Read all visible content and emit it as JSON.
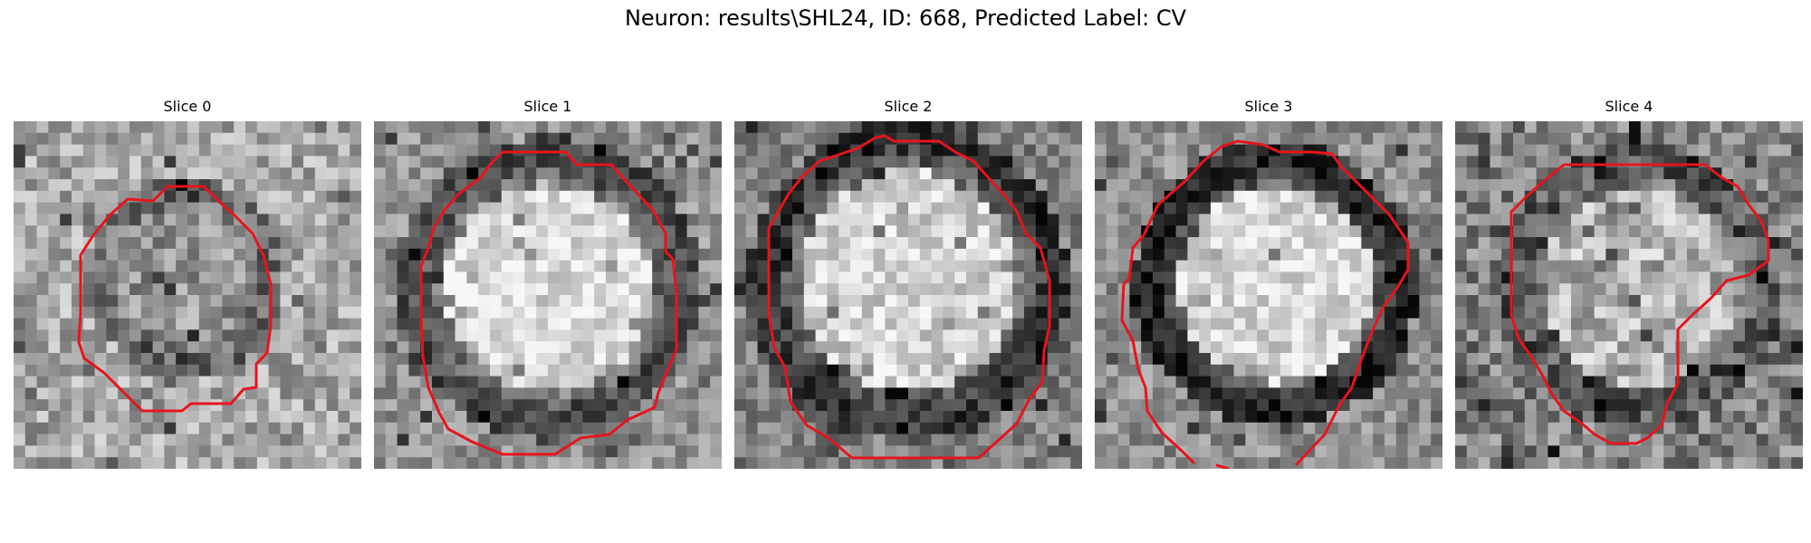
{
  "figure": {
    "title": "Neuron: results\\SHL24, ID: 668, Predicted Label: CV"
  },
  "panels": [
    {
      "title": "Slice 0"
    },
    {
      "title": "Slice 1"
    },
    {
      "title": "Slice 2"
    },
    {
      "title": "Slice 3"
    },
    {
      "title": "Slice 4"
    }
  ],
  "colors": {
    "contour": "#e8141c",
    "background": "#ffffff"
  }
}
